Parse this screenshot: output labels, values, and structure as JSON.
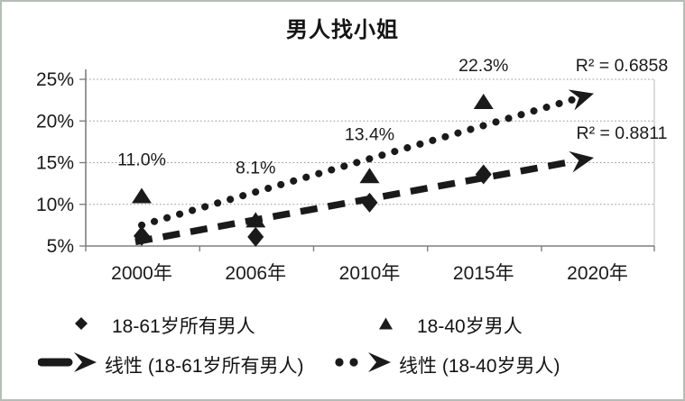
{
  "frame": {
    "border_color": "#b6bcb6",
    "background": "#ffffff",
    "ink_color": "#1a1a1a"
  },
  "chart_data": {
    "type": "scatter",
    "title": "男人找小姐",
    "categories": [
      "2000年",
      "2006年",
      "2010年",
      "2015年",
      "2020年"
    ],
    "y_tick_labels": [
      "5%",
      "10%",
      "15%",
      "20%",
      "25%"
    ],
    "y_axis": {
      "min": 5,
      "max": 25,
      "step": 5,
      "unit": "%"
    },
    "grid": true,
    "legend_position": "bottom",
    "series": [
      {
        "name": "18-61岁所有男人",
        "marker": "diamond",
        "values": [
          6.2,
          6.1,
          10.2,
          13.6,
          null
        ]
      },
      {
        "name": "18-40岁男人",
        "marker": "triangle",
        "values": [
          11.0,
          8.1,
          13.4,
          22.3,
          null
        ]
      }
    ],
    "point_labels": [
      {
        "text": "11.0%",
        "series": 1,
        "index": 0,
        "dy": -34
      },
      {
        "text": "8.1%",
        "series": 1,
        "index": 1,
        "dy": -52
      },
      {
        "text": "13.4%",
        "series": 1,
        "index": 2,
        "dy": -40
      },
      {
        "text": "22.3%",
        "series": 1,
        "index": 3,
        "dy": -34
      }
    ],
    "trendlines": [
      {
        "label": "线性 (18-40岁男人)",
        "style": "dotted",
        "r2": "R² = 0.6858",
        "start_value": 7.5,
        "end_value": 23.3
      },
      {
        "label": "线性 (18-61岁所有男人)",
        "style": "dashed",
        "r2": "R² = 0.8811",
        "start_value": 5.5,
        "end_value": 15.6
      }
    ]
  },
  "legend": {
    "series_items": [
      {
        "marker": "diamond",
        "label": "18-61岁所有男人"
      },
      {
        "marker": "triangle",
        "label": "18-40岁男人"
      }
    ],
    "trend_items": [
      {
        "style": "dashed",
        "label": "线性 (18-61岁所有男人)"
      },
      {
        "style": "dotted",
        "label": "线性 (18-40岁男人)"
      }
    ]
  }
}
